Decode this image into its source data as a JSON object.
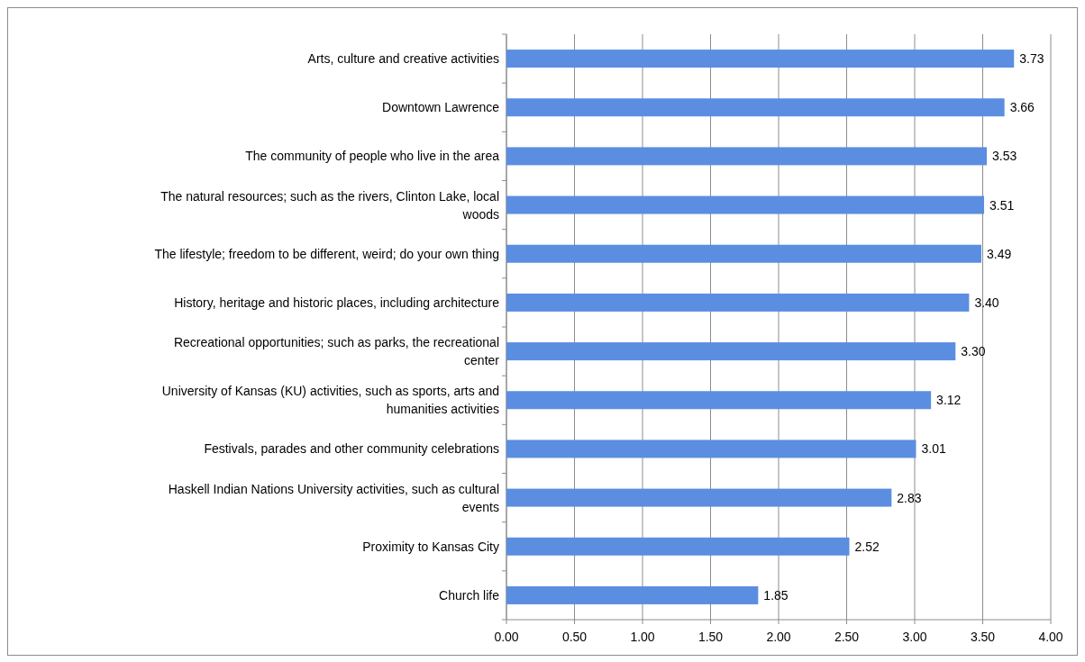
{
  "chart_data": {
    "type": "bar",
    "orientation": "horizontal",
    "categories": [
      "Arts, culture and creative activities",
      "Downtown Lawrence",
      "The community of people who live in the area",
      "The natural resources; such as the rivers, Clinton Lake, local woods",
      "The lifestyle; freedom to be different, weird; do your own thing",
      "History, heritage and historic places, including architecture",
      "Recreational opportunities; such as parks, the recreational center",
      "University of Kansas (KU) activities, such as sports, arts and humanities activities",
      "Festivals, parades and other community celebrations",
      "Haskell Indian Nations University activities, such as cultural events",
      "Proximity to Kansas City",
      "Church life"
    ],
    "values": [
      3.73,
      3.66,
      3.53,
      3.51,
      3.49,
      3.4,
      3.3,
      3.12,
      3.01,
      2.83,
      2.52,
      1.85
    ],
    "color": "#5b8ee0",
    "value_labels": [
      "3.73",
      "3.66",
      "3.53",
      "3.51",
      "3.49",
      "3.40",
      "3.30",
      "3.12",
      "3.01",
      "2.83",
      "2.52",
      "1.85"
    ],
    "xlim": [
      0,
      4
    ],
    "xticks": [
      {
        "value": 0,
        "label": "0.00"
      },
      {
        "value": 0.5,
        "label": "0.50"
      },
      {
        "value": 1,
        "label": "1.00"
      },
      {
        "value": 1.5,
        "label": "1.50"
      },
      {
        "value": 2,
        "label": "2.00"
      },
      {
        "value": 2.5,
        "label": "2.50"
      },
      {
        "value": 3,
        "label": "3.00"
      },
      {
        "value": 3.5,
        "label": "3.50"
      },
      {
        "value": 4,
        "label": "4.00"
      }
    ],
    "grid": "x"
  }
}
